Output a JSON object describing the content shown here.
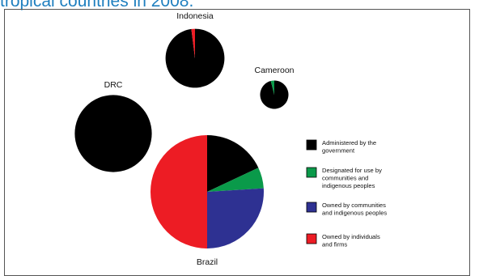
{
  "heading": "tropical countries in 2008.",
  "colors": {
    "heading": "#1f7fbf",
    "government": "#000000",
    "community_designated": "#0a9a4a",
    "community_owned": "#2e3192",
    "individuals_firms": "#ed1c24"
  },
  "chart_data": {
    "type": "pie",
    "title": "",
    "legend": {
      "position": "right",
      "entries": [
        {
          "key": "government",
          "lines": [
            "Administered by the",
            "government"
          ]
        },
        {
          "key": "community_designated",
          "lines": [
            "Designated for use by",
            "communities and",
            "indigenous peoples"
          ]
        },
        {
          "key": "community_owned",
          "lines": [
            "Owned by communities",
            "and indigenous peoples"
          ]
        },
        {
          "key": "individuals_firms",
          "lines": [
            "Owned by individuals",
            "and firms"
          ]
        }
      ]
    },
    "pies": [
      {
        "label": "Indonesia",
        "relative_size": 0.52,
        "slices": [
          {
            "key": "government",
            "value": 98
          },
          {
            "key": "individuals_firms",
            "value": 2
          }
        ]
      },
      {
        "label": "Cameroon",
        "relative_size": 0.25,
        "slices": [
          {
            "key": "government",
            "value": 96
          },
          {
            "key": "community_designated",
            "value": 4
          }
        ]
      },
      {
        "label": "DRC",
        "relative_size": 0.68,
        "slices": [
          {
            "key": "government",
            "value": 100
          }
        ]
      },
      {
        "label": "Brazil",
        "relative_size": 1.0,
        "slices": [
          {
            "key": "government",
            "value": 18
          },
          {
            "key": "community_designated",
            "value": 6
          },
          {
            "key": "community_owned",
            "value": 26
          },
          {
            "key": "individuals_firms",
            "value": 50
          }
        ]
      }
    ]
  }
}
